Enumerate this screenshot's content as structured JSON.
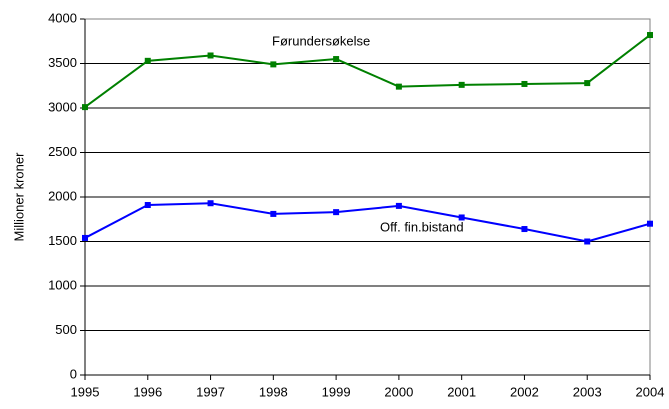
{
  "chart_data": {
    "type": "line",
    "y_label": "Millioner kroner",
    "x": [
      1995,
      1996,
      1997,
      1998,
      1999,
      2000,
      2001,
      2002,
      2003,
      2004
    ],
    "series": [
      {
        "name": "Førundersøkelse",
        "color": "#008000",
        "values": [
          3010,
          3530,
          3590,
          3490,
          3550,
          3240,
          3260,
          3270,
          3280,
          3820
        ]
      },
      {
        "name": "Off. fin.bistand",
        "color": "#0000ff",
        "values": [
          1540,
          1910,
          1930,
          1810,
          1830,
          1900,
          1770,
          1640,
          1500,
          1700
        ]
      }
    ],
    "xlim": [
      1995,
      2004
    ],
    "xticks": [
      1995,
      1996,
      1997,
      1998,
      1999,
      2000,
      2001,
      2002,
      2003,
      2004
    ],
    "ylim": [
      0,
      4000
    ],
    "yticks": [
      0,
      500,
      1000,
      1500,
      2000,
      2500,
      3000,
      3500,
      4000
    ],
    "grid": true
  }
}
